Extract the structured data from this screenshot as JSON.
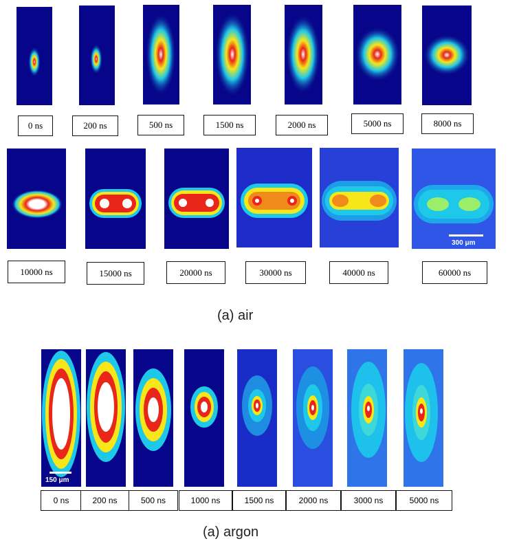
{
  "air": {
    "caption": "(a) air",
    "labels": [
      "0 ns",
      "200 ns",
      "500 ns",
      "1500 ns",
      "2000 ns",
      "5000 ns",
      "8000 ns",
      "10000 ns",
      "15000 ns",
      "20000 ns",
      "30000 ns",
      "40000 ns",
      "60000 ns"
    ],
    "scale_bar": "300 μm"
  },
  "argon": {
    "caption": "(a) argon",
    "labels": [
      "0 ns",
      "200 ns",
      "500 ns",
      "1000 ns",
      "1500 ns",
      "2000 ns",
      "3000 ns",
      "5000 ns"
    ],
    "scale_bar": "150 μm"
  },
  "colors": {
    "background_dark": "#07058a",
    "core_white": "#ffffff",
    "core_red": "#e8261a",
    "core_yellow": "#f6e61a",
    "halo_cyan": "#1ec8e8",
    "halo_blue": "#1c4fdc"
  }
}
